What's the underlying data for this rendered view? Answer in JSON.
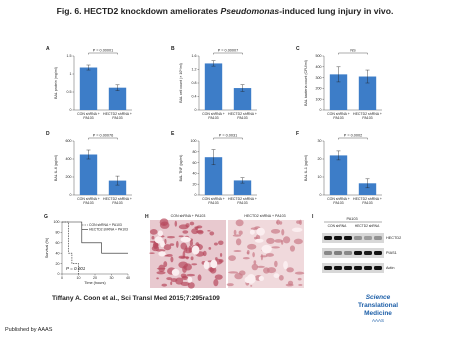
{
  "title": [
    "Fig. 6. HECTD2 knockdown ameliorates ",
    "Pseudomonas",
    "-induced lung injury in vivo."
  ],
  "chart_data": [
    {
      "type": "bar",
      "panel": "A",
      "ylabel": "BAL protein (mg/ml)",
      "categories": [
        [
          "CON shRNA +",
          "PA103"
        ],
        [
          "HECTD2 shRNA +",
          "PA103"
        ]
      ],
      "values": [
        1.18,
        0.62
      ],
      "errors": [
        0.07,
        0.08
      ],
      "color": "#3d7dc8",
      "ylim": [
        0,
        1.5
      ],
      "yticks": [
        0,
        0.5,
        1,
        1.5
      ],
      "annotation": "P = 0.00001"
    },
    {
      "type": "bar",
      "panel": "B",
      "ylabel": "BAL cell count (× 10⁵/ml)",
      "categories": [
        [
          "CON shRNA +",
          "PA103"
        ],
        [
          "HECTD2 shRNA +",
          "PA103"
        ]
      ],
      "values": [
        1.38,
        0.65
      ],
      "errors": [
        0.08,
        0.1
      ],
      "color": "#3d7dc8",
      "ylim": [
        0,
        1.6
      ],
      "yticks": [
        0,
        0.4,
        0.8,
        1.2,
        1.6
      ],
      "annotation": "P = 0.00007"
    },
    {
      "type": "bar",
      "panel": "C",
      "ylabel": "BAL bacteria count (CFU/ml)",
      "categories": [
        [
          "CON shRNA +",
          "PA103"
        ],
        [
          "HECTD2 shRNA +",
          "PA103"
        ]
      ],
      "values": [
        330,
        310
      ],
      "errors": [
        70,
        60
      ],
      "color": "#3d7dc8",
      "ylim": [
        0,
        500
      ],
      "yticks": [
        0,
        100,
        200,
        300,
        400,
        500
      ],
      "annotation": "NS"
    },
    {
      "type": "bar",
      "panel": "D",
      "ylabel": "BAL IL-6 (pg/ml)",
      "categories": [
        [
          "CON shRNA +",
          "PA103"
        ],
        [
          "HECTD2 shRNA +",
          "PA103"
        ]
      ],
      "values": [
        450,
        160
      ],
      "errors": [
        50,
        50
      ],
      "color": "#3d7dc8",
      "ylim": [
        0,
        600
      ],
      "yticks": [
        0,
        200,
        400,
        600
      ],
      "annotation": "P = 0.00076"
    },
    {
      "type": "bar",
      "panel": "E",
      "ylabel": "BAL TNF (pg/ml)",
      "categories": [
        [
          "CON shRNA +",
          "PA103"
        ],
        [
          "HECTD2 shRNA +",
          "PA103"
        ]
      ],
      "values": [
        70,
        27
      ],
      "errors": [
        14,
        5
      ],
      "color": "#3d7dc8",
      "ylim": [
        0,
        100
      ],
      "yticks": [
        0,
        20,
        40,
        60,
        80,
        100
      ],
      "annotation": "P = 0.0031"
    },
    {
      "type": "bar",
      "panel": "F",
      "ylabel": "BAL IL-1 (pg/ml)",
      "categories": [
        [
          "CON shRNA +",
          "PA103"
        ],
        [
          "HECTD2 shRNA +",
          "PA103"
        ]
      ],
      "values": [
        22,
        6.5
      ],
      "errors": [
        2.5,
        2.5
      ],
      "color": "#3d7dc8",
      "ylim": [
        0,
        30
      ],
      "yticks": [
        0,
        10,
        20,
        30
      ],
      "annotation": "P = 0.0002"
    },
    {
      "type": "line",
      "panel": "G",
      "ylabel": "Survival (%)",
      "xlabel": "Time (hours)",
      "xlim": [
        0,
        40
      ],
      "ylim": [
        0,
        100
      ],
      "xticks": [
        0,
        10,
        20,
        30,
        40
      ],
      "yticks": [
        0,
        20,
        40,
        60,
        80,
        100
      ],
      "annotation": "P = 0.001",
      "series": [
        {
          "name": "CON shRNA + PA103",
          "color": "#222222",
          "dashed": true,
          "x": [
            0,
            4,
            4,
            6,
            6,
            10,
            10
          ],
          "values": [
            100,
            100,
            40,
            40,
            20,
            20,
            0
          ]
        },
        {
          "name": "HECTD2 shRNA + PA103",
          "color": "#222222",
          "dashed": false,
          "x": [
            0,
            12,
            12,
            24,
            24,
            40
          ],
          "values": [
            100,
            100,
            60,
            60,
            40,
            40
          ]
        }
      ]
    }
  ],
  "panel_h": {
    "label": "H",
    "image_labels": [
      "CON shRNA + PA103",
      "HECTD2 shRNA + PA103"
    ]
  },
  "panel_i": {
    "label": "I",
    "group": "PA103",
    "lanes": [
      "CON shRNA",
      "HECTD2 shRNA"
    ],
    "bands": [
      "HECTD2",
      "PIAS1",
      "Actin"
    ]
  },
  "citation": "Tiffany A. Coon et al., Sci Transl Med 2015;7:295ra109",
  "logo": [
    "Science",
    "Translational",
    "Medicine",
    "AAAS"
  ],
  "footer": "Published by AAAS"
}
